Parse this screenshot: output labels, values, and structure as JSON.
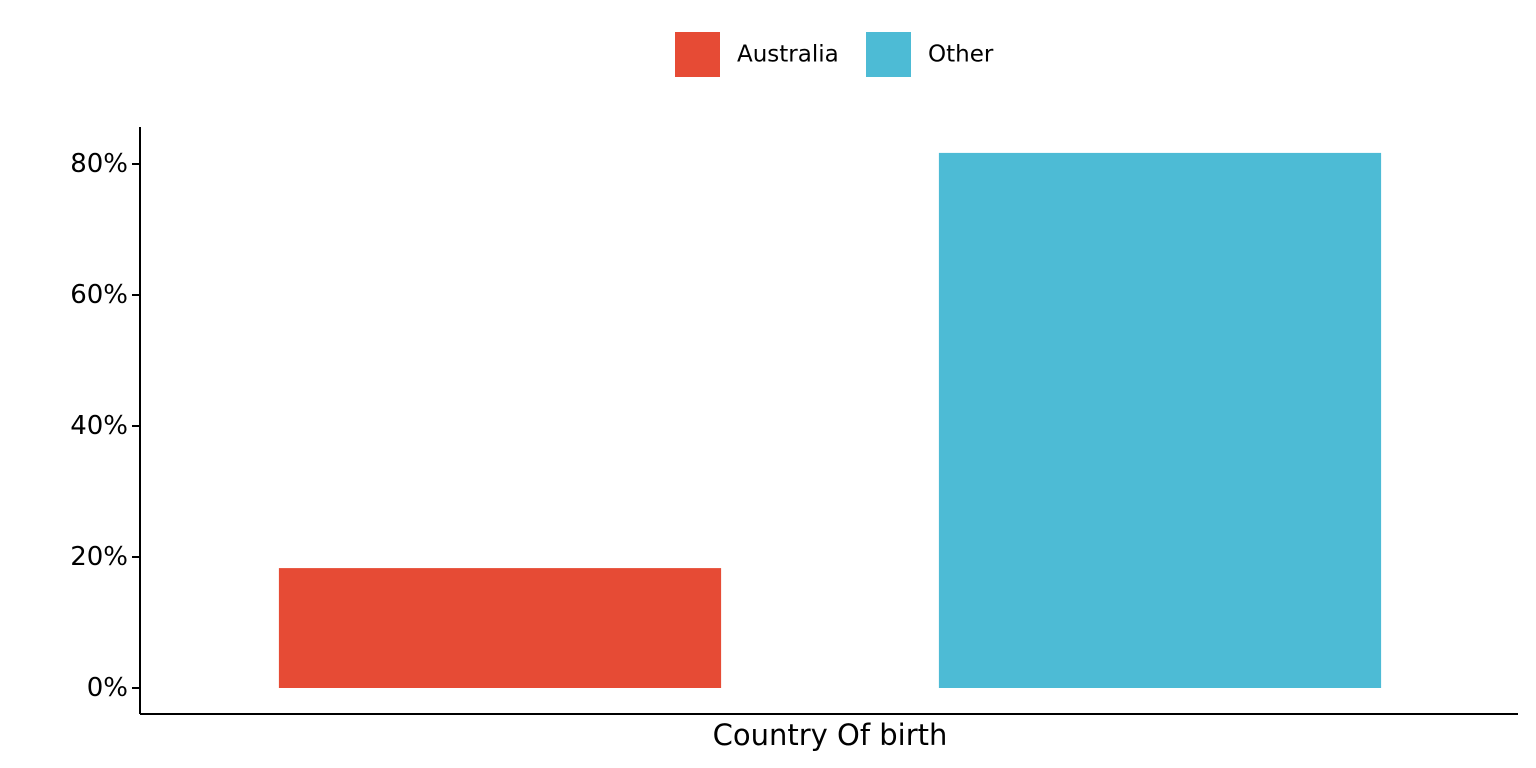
{
  "chart_data": {
    "type": "bar",
    "categories": [
      "Australia",
      "Other"
    ],
    "values": [
      18.3,
      81.7
    ],
    "colors": [
      "#E64B35",
      "#4DBBD5"
    ],
    "xlabel": "Country Of birth",
    "ylabel": "",
    "ylim": [
      0,
      85
    ],
    "yticks": [
      0,
      20,
      40,
      60,
      80
    ],
    "ytick_labels": [
      "0%",
      "20%",
      "40%",
      "60%",
      "80%"
    ],
    "y_unit": "percent",
    "grid": false,
    "legend": {
      "position": "top",
      "entries": [
        "Australia",
        "Other"
      ]
    }
  }
}
